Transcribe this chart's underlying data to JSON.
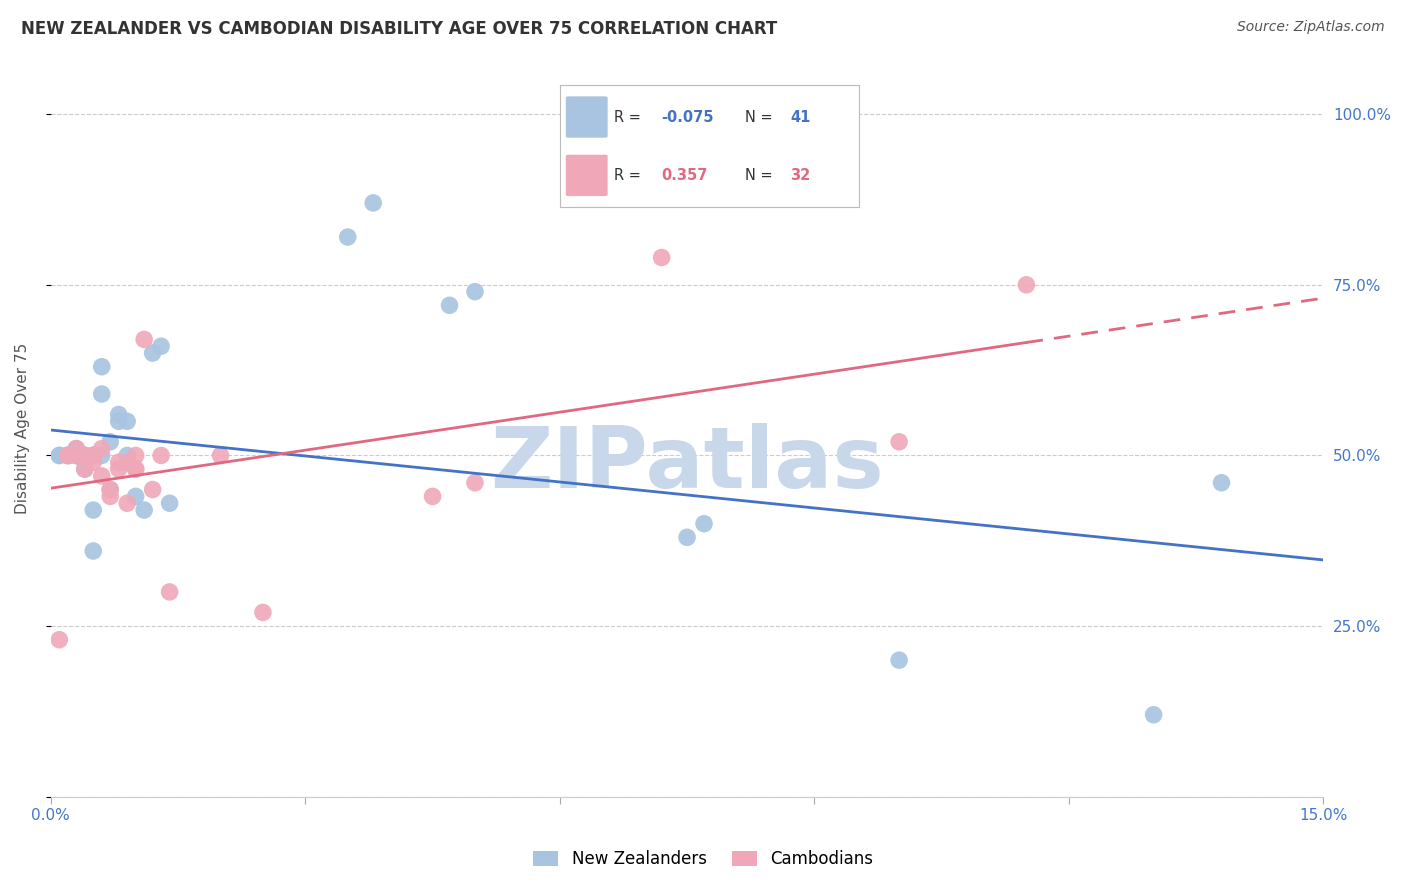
{
  "title": "NEW ZEALANDER VS CAMBODIAN DISABILITY AGE OVER 75 CORRELATION CHART",
  "source": "Source: ZipAtlas.com",
  "ylabel_label": "Disability Age Over 75",
  "xlim": [
    0.0,
    0.15
  ],
  "ylim": [
    0.0,
    1.08
  ],
  "nz_color": "#a8c4e0",
  "cam_color": "#f0a8b8",
  "nz_line_color": "#4472c4",
  "cam_line_color": "#e06880",
  "watermark": "ZIPatlas",
  "watermark_color": "#c8d8ea",
  "legend_nz_label": "New Zealanders",
  "legend_cam_label": "Cambodians",
  "nz_x": [
    0.001,
    0.001,
    0.002,
    0.002,
    0.002,
    0.003,
    0.003,
    0.003,
    0.003,
    0.004,
    0.004,
    0.004,
    0.004,
    0.005,
    0.005,
    0.005,
    0.005,
    0.006,
    0.006,
    0.006,
    0.007,
    0.007,
    0.008,
    0.008,
    0.009,
    0.009,
    0.009,
    0.01,
    0.011,
    0.012,
    0.013,
    0.014,
    0.035,
    0.038,
    0.047,
    0.05,
    0.075,
    0.077,
    0.1,
    0.13,
    0.138
  ],
  "nz_y": [
    0.5,
    0.5,
    0.5,
    0.5,
    0.5,
    0.5,
    0.5,
    0.51,
    0.5,
    0.49,
    0.48,
    0.5,
    0.5,
    0.42,
    0.5,
    0.5,
    0.36,
    0.59,
    0.63,
    0.5,
    0.45,
    0.52,
    0.55,
    0.56,
    0.49,
    0.55,
    0.5,
    0.44,
    0.42,
    0.65,
    0.66,
    0.43,
    0.82,
    0.87,
    0.72,
    0.74,
    0.38,
    0.4,
    0.2,
    0.12,
    0.46
  ],
  "cam_x": [
    0.001,
    0.002,
    0.002,
    0.003,
    0.003,
    0.004,
    0.004,
    0.005,
    0.005,
    0.005,
    0.006,
    0.006,
    0.007,
    0.007,
    0.008,
    0.008,
    0.009,
    0.009,
    0.01,
    0.01,
    0.01,
    0.011,
    0.012,
    0.013,
    0.014,
    0.02,
    0.025,
    0.045,
    0.05,
    0.072,
    0.1,
    0.115
  ],
  "cam_y": [
    0.23,
    0.5,
    0.5,
    0.5,
    0.51,
    0.48,
    0.5,
    0.49,
    0.5,
    0.5,
    0.47,
    0.51,
    0.45,
    0.44,
    0.48,
    0.49,
    0.49,
    0.43,
    0.5,
    0.48,
    0.48,
    0.67,
    0.45,
    0.5,
    0.3,
    0.5,
    0.27,
    0.44,
    0.46,
    0.79,
    0.52,
    0.75
  ]
}
